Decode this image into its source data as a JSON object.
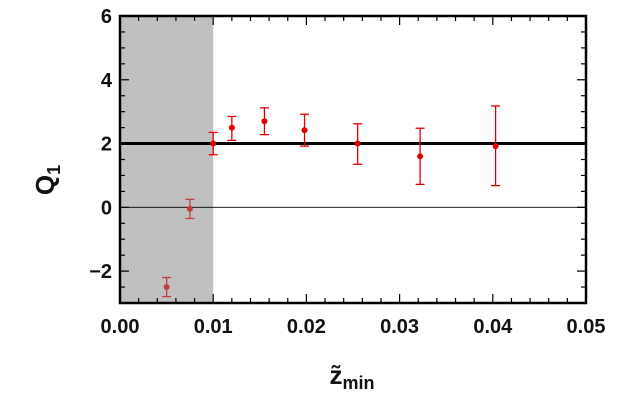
{
  "chart_data": {
    "type": "scatter",
    "xlim": [
      0,
      0.05
    ],
    "ylim": [
      -3,
      6
    ],
    "xticks": [
      "0.00",
      "0.01",
      "0.02",
      "0.03",
      "0.04",
      "0.05"
    ],
    "xtick_values": [
      0,
      0.01,
      0.02,
      0.03,
      0.04,
      0.05
    ],
    "yticks": [
      "−2",
      "0",
      "2",
      "4",
      "6"
    ],
    "ytick_values": [
      -2,
      0,
      2,
      4,
      6
    ],
    "xlabel": {
      "main": "z̃",
      "sub": "min"
    },
    "ylabel": {
      "main": "Q",
      "sub": "1"
    },
    "shaded_region": {
      "x_from": 0,
      "x_to": 0.01,
      "color": "#c0c0c0"
    },
    "reference_lines": [
      {
        "y": 2,
        "style": "thick",
        "color": "#000000"
      },
      {
        "y": 0,
        "style": "thin",
        "color": "#000000"
      }
    ],
    "point_color": "#e00000",
    "shaded_point_color": "#c04040",
    "grid": false,
    "legend": "none",
    "points": [
      {
        "x": 0.005,
        "y": -2.5,
        "ylow": -2.8,
        "yhigh": -2.2
      },
      {
        "x": 0.0075,
        "y": -0.05,
        "ylow": -0.35,
        "yhigh": 0.25
      },
      {
        "x": 0.01,
        "y": 2.0,
        "ylow": 1.65,
        "yhigh": 2.35
      },
      {
        "x": 0.012,
        "y": 2.5,
        "ylow": 2.1,
        "yhigh": 2.85
      },
      {
        "x": 0.0155,
        "y": 2.7,
        "ylow": 2.28,
        "yhigh": 3.12
      },
      {
        "x": 0.0198,
        "y": 2.42,
        "ylow": 1.92,
        "yhigh": 2.92
      },
      {
        "x": 0.0255,
        "y": 2.0,
        "ylow": 1.35,
        "yhigh": 2.62
      },
      {
        "x": 0.0322,
        "y": 1.6,
        "ylow": 0.72,
        "yhigh": 2.48
      },
      {
        "x": 0.0403,
        "y": 1.92,
        "ylow": 0.68,
        "yhigh": 3.18
      }
    ]
  }
}
